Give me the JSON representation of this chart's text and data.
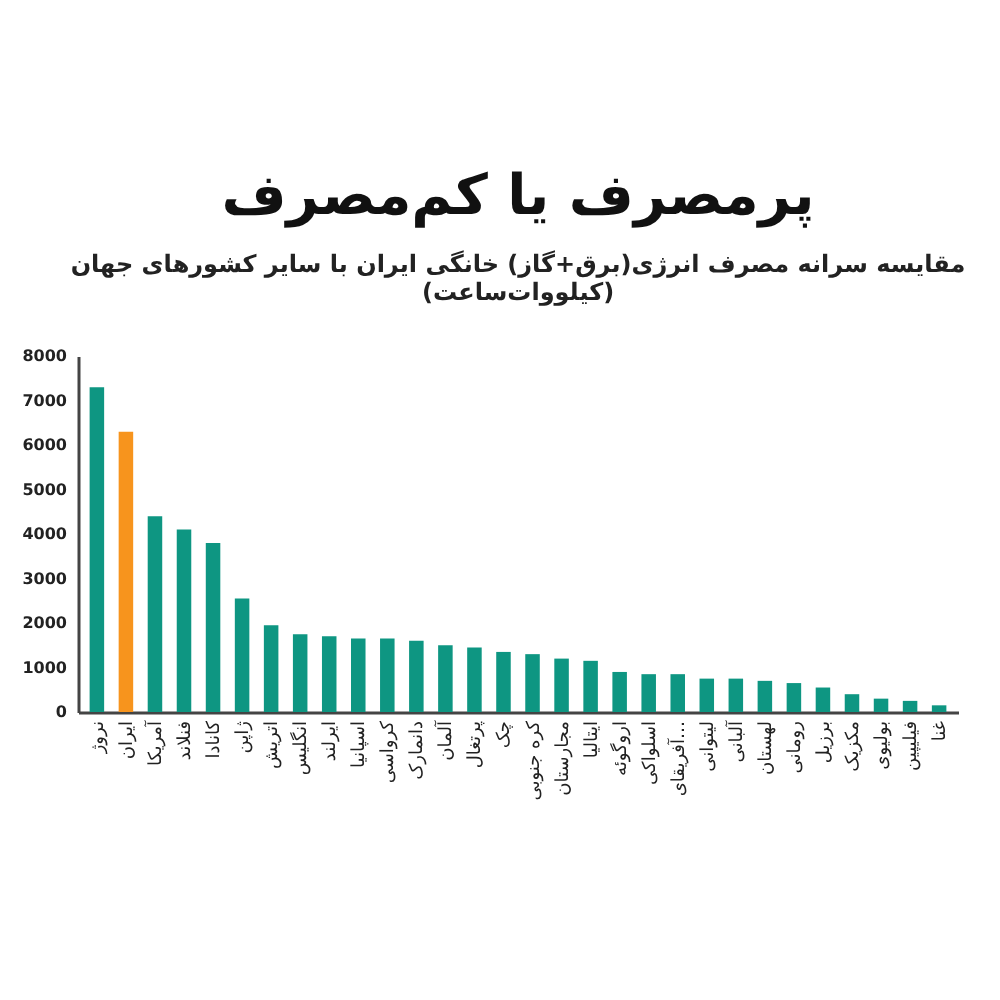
{
  "chart_data": {
    "type": "bar",
    "title": "پرمصرف یا کم‌مصرف",
    "subtitle": "مقایسه سرانه مصرف انرژی(برق+گاز) خانگی ایران با سایر کشورهای جهان\n(کیلووات‌ساعت)",
    "categories": [
      "نروژ",
      "ایران",
      "آمریکا",
      "فنلاند",
      "کانادا",
      "ژاپن",
      "اتریش",
      "انگلیس",
      "ایرلند",
      "اسپانیا",
      "کرواسی",
      "دانمارک",
      "آلمان",
      "پرتغال",
      "چک",
      "کره جنوبی",
      "مجارستان",
      "ایتالیا",
      "اروگوئه",
      "اسلواکی",
      "آفریقای…",
      "لیتوانی",
      "آلبانی",
      "لهستان",
      "رومانی",
      "برزیل",
      "مکزیک",
      "بولیوی",
      "فیلیپین",
      "غنا"
    ],
    "values": [
      7300,
      6300,
      4400,
      4100,
      3800,
      2550,
      1950,
      1750,
      1700,
      1650,
      1650,
      1600,
      1500,
      1450,
      1350,
      1300,
      1200,
      1150,
      900,
      850,
      850,
      750,
      750,
      700,
      650,
      550,
      400,
      300,
      250,
      150
    ],
    "colors": [
      "#0e9682",
      "#f7941d",
      "#0e9682",
      "#0e9682",
      "#0e9682",
      "#0e9682",
      "#0e9682",
      "#0e9682",
      "#0e9682",
      "#0e9682",
      "#0e9682",
      "#0e9682",
      "#0e9682",
      "#0e9682",
      "#0e9682",
      "#0e9682",
      "#0e9682",
      "#0e9682",
      "#0e9682",
      "#0e9682",
      "#0e9682",
      "#0e9682",
      "#0e9682",
      "#0e9682",
      "#0e9682",
      "#0e9682",
      "#0e9682",
      "#0e9682",
      "#0e9682",
      "#0e9682"
    ],
    "ylim": [
      0,
      8000
    ],
    "yticks": [
      0,
      1000,
      2000,
      3000,
      4000,
      5000,
      6000,
      7000,
      8000
    ]
  }
}
